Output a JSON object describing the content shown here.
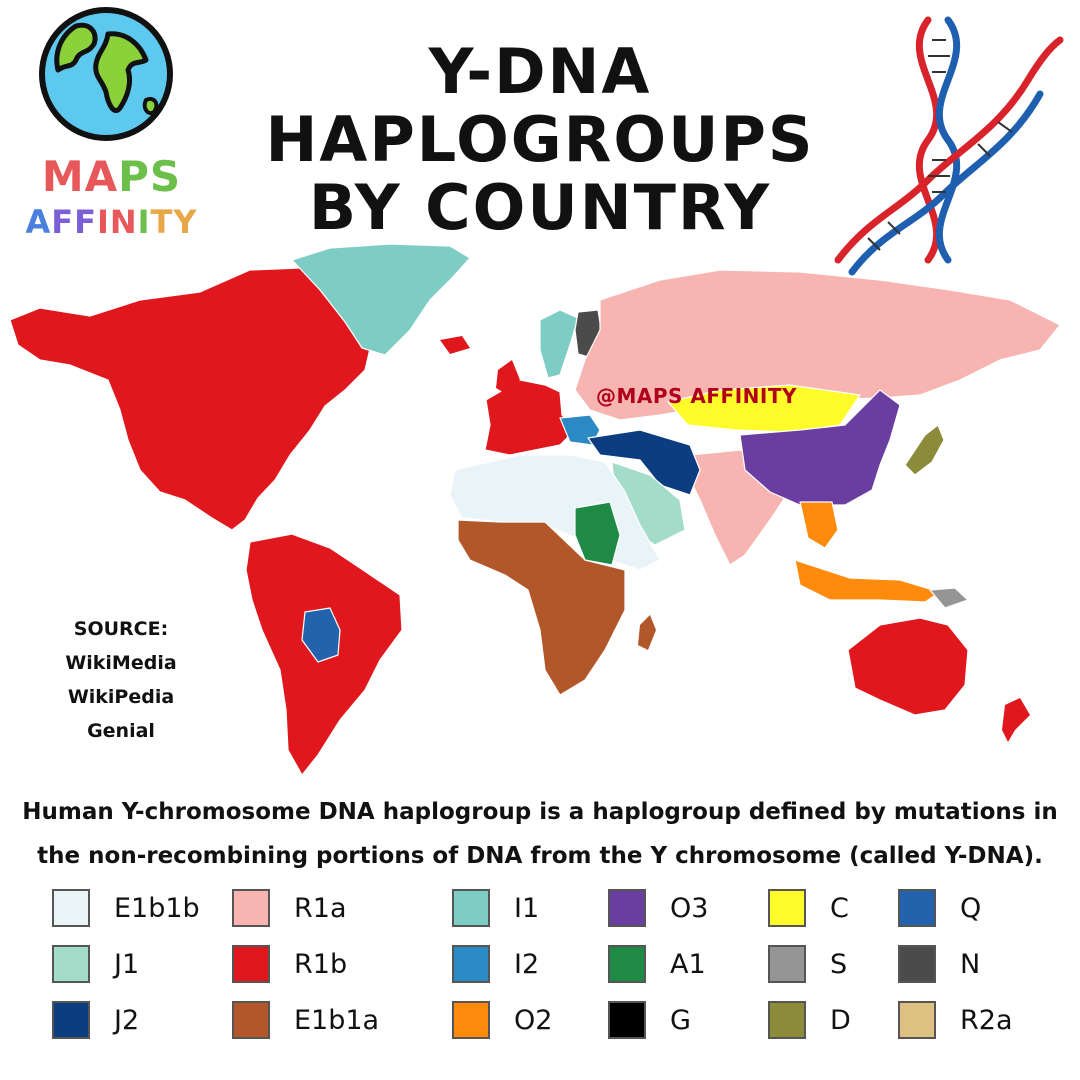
{
  "header": {
    "title_line1": "Y-DNA HAPLOGROUPS",
    "title_line2": "BY COUNTRY"
  },
  "brand": {
    "line1": [
      {
        "ch": "M",
        "color": "#e8585a"
      },
      {
        "ch": "A",
        "color": "#e8585a"
      },
      {
        "ch": "P",
        "color": "#6cc04a"
      },
      {
        "ch": "S",
        "color": "#6cc04a"
      }
    ],
    "line2": [
      {
        "ch": "A",
        "color": "#4a7fe0"
      },
      {
        "ch": "F",
        "color": "#7a5fd6"
      },
      {
        "ch": "F",
        "color": "#7a5fd6"
      },
      {
        "ch": "I",
        "color": "#e8585a"
      },
      {
        "ch": "N",
        "color": "#e8585a"
      },
      {
        "ch": "I",
        "color": "#6cc04a"
      },
      {
        "ch": "T",
        "color": "#e8a84a"
      },
      {
        "ch": "Y",
        "color": "#e8a84a"
      }
    ]
  },
  "watermark": "@MAPS AFFINITY",
  "source": {
    "heading": "SOURCE:",
    "items": [
      "WikiMedia",
      "WikiPedia",
      "Genial"
    ]
  },
  "description": {
    "line1": "Human Y-chromosome DNA haplogroup is a haplogroup defined by mutations in",
    "line2": "the non-recombining portions of DNA from the Y chromosome (called Y-DNA)."
  },
  "legend": [
    {
      "label": "E1b1b",
      "color": "#e8f4f8"
    },
    {
      "label": "J1",
      "color": "#a3dcc9"
    },
    {
      "label": "J2",
      "color": "#0b3d80"
    },
    {
      "label": "R1a",
      "color": "#f7b4b0"
    },
    {
      "label": "R1b",
      "color": "#e0171c"
    },
    {
      "label": "E1b1a",
      "color": "#b2572a"
    },
    {
      "label": "I1",
      "color": "#7ecdc5"
    },
    {
      "label": "I2",
      "color": "#2b8ac3"
    },
    {
      "label": "O2",
      "color": "#ff8a0c"
    },
    {
      "label": "O3",
      "color": "#6a3ea0"
    },
    {
      "label": "A1",
      "color": "#1e8a45"
    },
    {
      "label": "G",
      "color": "#000000"
    },
    {
      "label": "C",
      "color": "#fffb2b"
    },
    {
      "label": "S",
      "color": "#959595"
    },
    {
      "label": "D",
      "color": "#8b8b3a"
    },
    {
      "label": "Q",
      "color": "#2363ae"
    },
    {
      "label": "N",
      "color": "#4b4b4b"
    },
    {
      "label": "R2a",
      "color": "#dfc083"
    }
  ],
  "regions": [
    {
      "name": "north-america",
      "group": "R1b",
      "color": "#e0171c"
    },
    {
      "name": "greenland",
      "group": "I1",
      "color": "#7ecdc5"
    },
    {
      "name": "south-america",
      "group": "R1b",
      "color": "#e0171c"
    },
    {
      "name": "bolivia",
      "group": "Q",
      "color": "#2363ae"
    },
    {
      "name": "western-europe",
      "group": "R1b",
      "color": "#e0171c"
    },
    {
      "name": "scandinavia",
      "group": "I1",
      "color": "#7ecdc5"
    },
    {
      "name": "finland",
      "group": "N",
      "color": "#4b4b4b"
    },
    {
      "name": "eastern-europe-russia",
      "group": "R1a",
      "color": "#f7b4b0"
    },
    {
      "name": "balkans",
      "group": "I2",
      "color": "#2b8ac3"
    },
    {
      "name": "turkey-iran",
      "group": "J2",
      "color": "#0b3d80"
    },
    {
      "name": "arabia",
      "group": "J1",
      "color": "#a3dcc9"
    },
    {
      "name": "north-africa",
      "group": "E1b1b",
      "color": "#e8f4f8"
    },
    {
      "name": "sub-saharan-africa",
      "group": "E1b1a",
      "color": "#b2572a"
    },
    {
      "name": "sudan",
      "group": "A1",
      "color": "#1e8a45"
    },
    {
      "name": "mongolia",
      "group": "C",
      "color": "#fffb2b"
    },
    {
      "name": "china",
      "group": "O3",
      "color": "#6a3ea0"
    },
    {
      "name": "south-asia",
      "group": "R1a",
      "color": "#f7b4b0"
    },
    {
      "name": "southeast-asia",
      "group": "O2",
      "color": "#ff8a0c"
    },
    {
      "name": "japan",
      "group": "D",
      "color": "#8b8b3a"
    },
    {
      "name": "australia",
      "group": "R1b",
      "color": "#e0171c"
    },
    {
      "name": "new-guinea",
      "group": "S",
      "color": "#959595"
    }
  ]
}
